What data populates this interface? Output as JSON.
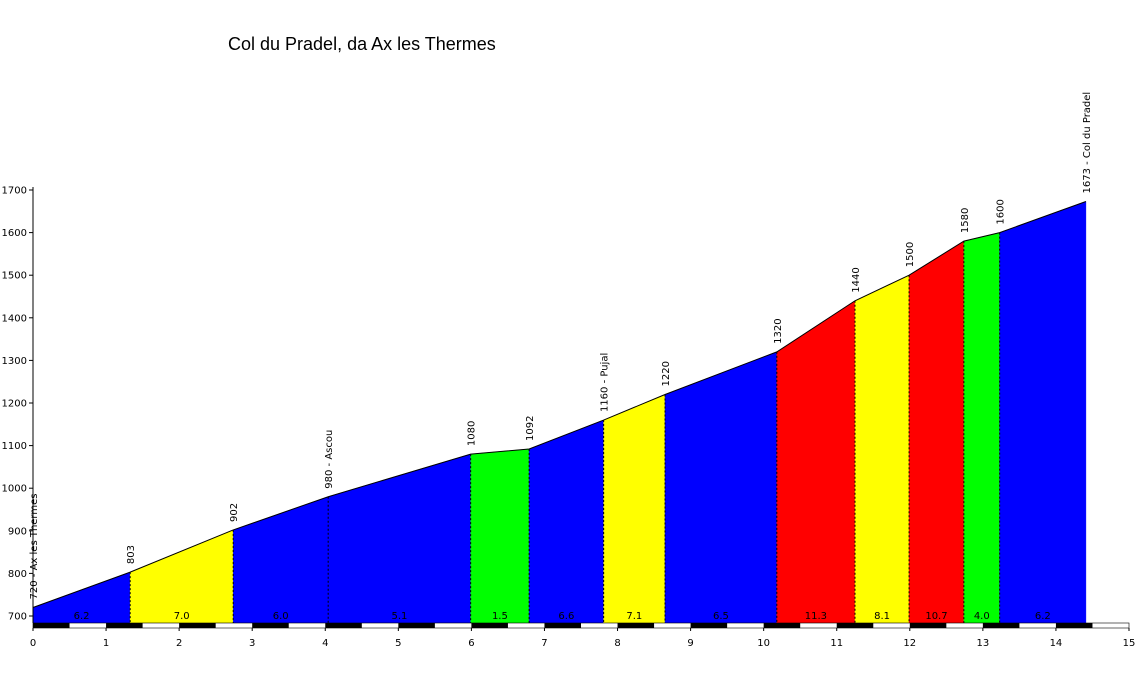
{
  "chart_data": {
    "type": "area",
    "title": "Col du Pradel, da Ax les Thermes",
    "xlabel": "",
    "ylabel": "",
    "xlim": [
      0,
      15
    ],
    "ylim": [
      690,
      1700
    ],
    "x_ticks": [
      "0",
      "1",
      "2",
      "3",
      "4",
      "5",
      "6",
      "7",
      "8",
      "9",
      "10",
      "11",
      "12",
      "13",
      "14",
      "15"
    ],
    "y_ticks": [
      "700",
      "800",
      "900",
      "1000",
      "1100",
      "1200",
      "1300",
      "1400",
      "1500",
      "1600",
      "1700"
    ],
    "grid": false,
    "legend": "none",
    "profile": [
      {
        "km": 0,
        "alt": 720
      },
      {
        "km": 1.33,
        "alt": 803
      },
      {
        "km": 2.74,
        "alt": 902
      },
      {
        "km": 4.04,
        "alt": 980
      },
      {
        "km": 5.99,
        "alt": 1080
      },
      {
        "km": 6.79,
        "alt": 1092
      },
      {
        "km": 7.81,
        "alt": 1160
      },
      {
        "km": 8.65,
        "alt": 1220
      },
      {
        "km": 10.18,
        "alt": 1320
      },
      {
        "km": 11.25,
        "alt": 1440
      },
      {
        "km": 11.99,
        "alt": 1500
      },
      {
        "km": 12.74,
        "alt": 1580
      },
      {
        "km": 13.23,
        "alt": 1600
      },
      {
        "km": 14.41,
        "alt": 1673
      }
    ],
    "segments": [
      {
        "from": 0,
        "to": 1.33,
        "gradient": "6.2",
        "color": "#0000ff"
      },
      {
        "from": 1.33,
        "to": 2.74,
        "gradient": "7.0",
        "color": "#ffff00"
      },
      {
        "from": 2.74,
        "to": 4.04,
        "gradient": "6.0",
        "color": "#0000ff"
      },
      {
        "from": 4.04,
        "to": 5.99,
        "gradient": "5.1",
        "color": "#0000ff"
      },
      {
        "from": 5.99,
        "to": 6.79,
        "gradient": "1.5",
        "color": "#00ff00"
      },
      {
        "from": 6.79,
        "to": 7.81,
        "gradient": "6.6",
        "color": "#0000ff"
      },
      {
        "from": 7.81,
        "to": 8.65,
        "gradient": "7.1",
        "color": "#ffff00"
      },
      {
        "from": 8.65,
        "to": 10.18,
        "gradient": "6.5",
        "color": "#0000ff"
      },
      {
        "from": 10.18,
        "to": 11.25,
        "gradient": "11.3",
        "color": "#ff0000"
      },
      {
        "from": 11.25,
        "to": 11.99,
        "gradient": "8.1",
        "color": "#ffff00"
      },
      {
        "from": 11.99,
        "to": 12.74,
        "gradient": "10.7",
        "color": "#ff0000"
      },
      {
        "from": 12.74,
        "to": 13.23,
        "gradient": "4.0",
        "color": "#00ff00"
      },
      {
        "from": 13.23,
        "to": 14.41,
        "gradient": "6.2",
        "color": "#0000ff"
      }
    ],
    "point_labels": [
      {
        "km": 0,
        "alt": 720,
        "text": "720 - Ax les Thermes"
      },
      {
        "km": 1.33,
        "alt": 803,
        "text": "803"
      },
      {
        "km": 2.74,
        "alt": 902,
        "text": "902"
      },
      {
        "km": 4.04,
        "alt": 980,
        "text": "980 - Ascou"
      },
      {
        "km": 5.99,
        "alt": 1080,
        "text": "1080"
      },
      {
        "km": 6.79,
        "alt": 1092,
        "text": "1092"
      },
      {
        "km": 7.81,
        "alt": 1160,
        "text": "1160 - Pujal"
      },
      {
        "km": 8.65,
        "alt": 1220,
        "text": "1220"
      },
      {
        "km": 10.18,
        "alt": 1320,
        "text": "1320"
      },
      {
        "km": 11.25,
        "alt": 1440,
        "text": "1440"
      },
      {
        "km": 11.99,
        "alt": 1500,
        "text": "1500"
      },
      {
        "km": 12.74,
        "alt": 1580,
        "text": "1580"
      },
      {
        "km": 13.23,
        "alt": 1600,
        "text": "1600"
      },
      {
        "km": 14.41,
        "alt": 1673,
        "text": "1673 - Col du Pradel"
      }
    ],
    "colors": {
      "blue": "#0000ff",
      "yellow": "#ffff00",
      "green": "#00ff00",
      "red": "#ff0000",
      "axis": "#000000",
      "background": "#ffffff"
    }
  }
}
